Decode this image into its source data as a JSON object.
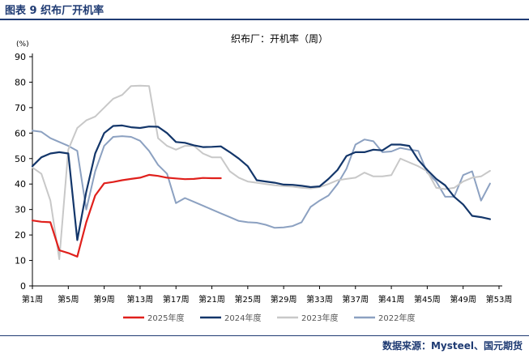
{
  "figure_label": "图表 9  织布厂开机率",
  "source_note": "数据来源：Mysteel、国元期货",
  "colors": {
    "s2025": "#e0201c",
    "s2024": "#13366a",
    "s2023": "#c8c8c8",
    "s2022": "#8ca1c1",
    "axis": "#000000",
    "header": "#1f3b73"
  },
  "chart_data": {
    "type": "line",
    "title": "织布厂：开机率（周）",
    "ylabel": "(%)",
    "xlabel": "",
    "ylim": [
      0,
      90
    ],
    "yticks": [
      0,
      10,
      20,
      30,
      40,
      50,
      60,
      70,
      80,
      90
    ],
    "xlim": [
      1,
      53
    ],
    "xticks": [
      1,
      5,
      9,
      13,
      17,
      21,
      25,
      29,
      33,
      37,
      41,
      45,
      49,
      53
    ],
    "xtick_labels": [
      "第1周",
      "第5周",
      "第9周",
      "第13周",
      "第17周",
      "第21周",
      "第25周",
      "第29周",
      "第33周",
      "第37周",
      "第41周",
      "第45周",
      "第49周",
      "第53周"
    ],
    "grid": false,
    "legend_position": "bottom",
    "series": [
      {
        "name": "2025年度",
        "color_key": "s2025",
        "width": 2.2,
        "x": [
          1,
          2,
          3,
          4,
          5,
          6,
          7,
          8,
          9,
          10,
          11,
          12,
          13,
          14,
          15,
          16,
          17,
          18,
          19,
          20,
          21,
          22
        ],
        "y": [
          25.7,
          25.2,
          25.0,
          14.0,
          12.9,
          11.5,
          25.0,
          35.5,
          40.3,
          40.8,
          41.5,
          42.0,
          42.5,
          43.6,
          43.2,
          42.5,
          42.2,
          41.9,
          42.0,
          42.4,
          42.3,
          42.3
        ]
      },
      {
        "name": "2024年度",
        "color_key": "s2024",
        "width": 2.2,
        "x": [
          1,
          2,
          3,
          4,
          5,
          6,
          7,
          8,
          9,
          10,
          11,
          12,
          13,
          14,
          15,
          16,
          17,
          18,
          19,
          20,
          21,
          22,
          23,
          24,
          25,
          26,
          27,
          28,
          29,
          30,
          31,
          32,
          33,
          34,
          35,
          36,
          37,
          38,
          39,
          40,
          41,
          42,
          43,
          44,
          45,
          46,
          47,
          48,
          49,
          50,
          51,
          52,
          53
        ],
        "y": [
          47.0,
          50.5,
          52.0,
          52.5,
          52.0,
          18.0,
          37.0,
          52.0,
          60.0,
          62.8,
          63.0,
          62.3,
          62.0,
          62.6,
          62.5,
          60.0,
          56.5,
          56.2,
          55.2,
          54.5,
          54.6,
          54.8,
          52.5,
          50.0,
          47.0,
          41.5,
          41.0,
          40.5,
          39.8,
          39.7,
          39.3,
          38.8,
          39.1,
          42.0,
          45.5,
          51.0,
          52.5,
          52.5,
          53.5,
          53.2,
          55.5,
          55.5,
          55.0,
          49.5,
          45.5,
          42.0,
          39.5,
          35.0,
          32.0,
          27.5,
          27.0,
          26.2,
          null
        ]
      },
      {
        "name": "2023年度",
        "color_key": "s2023",
        "width": 2.0,
        "x": [
          1,
          2,
          3,
          4,
          5,
          6,
          7,
          8,
          9,
          10,
          11,
          12,
          13,
          14,
          15,
          16,
          17,
          18,
          19,
          20,
          21,
          22,
          23,
          24,
          25,
          26,
          27,
          28,
          29,
          30,
          31,
          32,
          33,
          34,
          35,
          36,
          37,
          38,
          39,
          40,
          41,
          42,
          43,
          44,
          45,
          46,
          47,
          48,
          49,
          50,
          51,
          52,
          53
        ],
        "y": [
          46.5,
          44.0,
          33.5,
          10.5,
          53.5,
          62.0,
          65.0,
          66.5,
          70.0,
          73.5,
          75.0,
          78.5,
          78.6,
          78.5,
          58.0,
          55.0,
          53.5,
          55.0,
          55.0,
          52.0,
          50.5,
          50.5,
          45.0,
          42.5,
          41.0,
          40.5,
          40.0,
          39.5,
          39.2,
          39.0,
          38.5,
          38.3,
          38.8,
          40.0,
          41.5,
          42.0,
          42.5,
          44.5,
          43.0,
          43.0,
          43.5,
          50.0,
          48.5,
          47.0,
          45.0,
          38.5,
          38.0,
          38.5,
          41.0,
          42.5,
          43.0,
          45.2,
          null
        ]
      },
      {
        "name": "2022年度",
        "color_key": "s2022",
        "width": 2.0,
        "x": [
          1,
          2,
          3,
          4,
          5,
          6,
          7,
          8,
          9,
          10,
          11,
          12,
          13,
          14,
          15,
          16,
          17,
          18,
          19,
          20,
          21,
          22,
          23,
          24,
          25,
          26,
          27,
          28,
          29,
          30,
          31,
          32,
          33,
          34,
          35,
          36,
          37,
          38,
          39,
          40,
          41,
          42,
          43,
          44,
          45,
          46,
          47,
          48,
          49,
          50,
          51,
          52,
          53
        ],
        "y": [
          61.0,
          60.5,
          58.0,
          56.5,
          55.0,
          53.0,
          30.0,
          45.0,
          55.0,
          58.5,
          58.8,
          58.5,
          57.0,
          53.0,
          47.5,
          44.0,
          32.5,
          34.5,
          33.0,
          31.5,
          30.0,
          28.5,
          27.0,
          25.5,
          25.0,
          24.8,
          24.0,
          22.8,
          23.0,
          23.5,
          25.0,
          31.0,
          33.5,
          35.5,
          40.0,
          46.0,
          55.5,
          57.5,
          56.8,
          52.5,
          52.8,
          54.2,
          53.5,
          53.0,
          44.5,
          41.0,
          35.0,
          35.0,
          43.5,
          45.0,
          33.5,
          40.2,
          null
        ]
      }
    ]
  }
}
